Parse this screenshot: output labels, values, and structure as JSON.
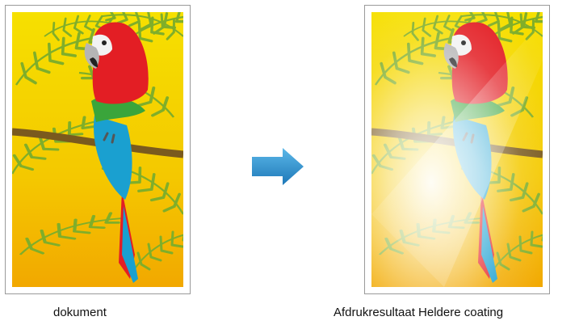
{
  "original": {
    "caption": "dokument"
  },
  "result": {
    "caption": "Afdrukresultaat Heldere coating"
  },
  "arrow": {
    "icon": "right-arrow-icon",
    "color": "#1e88c8"
  },
  "colors": {
    "background_top": "#f6e000",
    "background_bottom": "#f2a800",
    "leaf": "#7fae2a",
    "branch": "#7a5a1e",
    "parrot_red": "#e31e24",
    "parrot_green": "#3aa53b",
    "parrot_blue": "#1aa0d0",
    "beak": "#b5b5b5",
    "coating_highlight": "#ffffff"
  },
  "icons": [
    "parrot-illustration",
    "right-arrow-icon",
    "gloss-highlight"
  ]
}
